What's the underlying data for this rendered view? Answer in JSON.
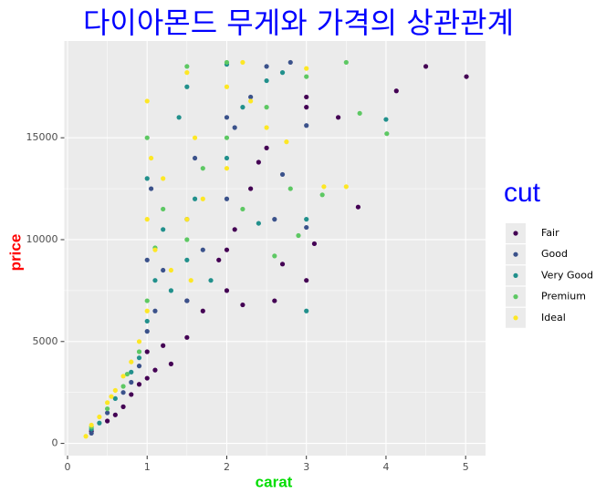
{
  "chart_data": {
    "type": "scatter",
    "title": "다이아몬드 무게와 가격의 상관관계",
    "x_label": "carat",
    "y_label": "price",
    "legend_title": "cut",
    "legend_position": "right",
    "grid": true,
    "xlim": [
      -0.04,
      5.25
    ],
    "ylim": [
      -599,
      19748
    ],
    "xticks": [
      0,
      1,
      2,
      3,
      4,
      5
    ],
    "yticks": [
      0,
      5000,
      10000,
      15000
    ],
    "series": [
      {
        "name": "Fair",
        "color": "#440154",
        "x": [
          0.3,
          0.5,
          0.7,
          0.8,
          0.9,
          1.0,
          1.0,
          1.1,
          1.2,
          1.5,
          1.5,
          1.7,
          2.0,
          2.0,
          2.1,
          2.3,
          2.5,
          2.6,
          2.7,
          3.0,
          3.0,
          3.0,
          3.4,
          3.65,
          4.13,
          4.5,
          5.01,
          3.1,
          2.2,
          1.3,
          0.6,
          1.9,
          2.4
        ],
        "values": [
          600,
          1100,
          1800,
          2400,
          2900,
          3200,
          4500,
          3600,
          4800,
          5200,
          7000,
          6500,
          7500,
          9500,
          10500,
          12500,
          14500,
          7000,
          8800,
          8000,
          17000,
          16500,
          16000,
          11600,
          17300,
          18500,
          18000,
          9800,
          6800,
          3900,
          1400,
          9000,
          13800
        ]
      },
      {
        "name": "Good",
        "color": "#3B528B",
        "x": [
          0.3,
          0.5,
          0.7,
          0.9,
          1.0,
          1.0,
          1.1,
          1.2,
          1.5,
          1.5,
          1.6,
          1.7,
          2.0,
          2.0,
          2.1,
          2.3,
          2.5,
          2.8,
          3.0,
          3.0,
          2.7,
          0.8,
          1.05,
          2.6
        ],
        "values": [
          500,
          1500,
          2500,
          3800,
          5500,
          9000,
          6500,
          8500,
          7000,
          11000,
          14000,
          9500,
          12000,
          16000,
          15500,
          17000,
          18500,
          18700,
          15600,
          10600,
          13200,
          3000,
          12500,
          11000
        ]
      },
      {
        "name": "Very Good",
        "color": "#21908C",
        "x": [
          0.3,
          0.4,
          0.6,
          0.8,
          1.0,
          1.0,
          1.1,
          1.2,
          1.5,
          1.5,
          1.6,
          1.8,
          2.0,
          2.0,
          2.2,
          2.5,
          2.7,
          3.0,
          4.0,
          3.0,
          0.9,
          1.3,
          2.4,
          1.4
        ],
        "values": [
          700,
          1000,
          2200,
          3500,
          6000,
          13000,
          8000,
          10500,
          9000,
          17500,
          12000,
          8000,
          14000,
          18600,
          16500,
          17800,
          18200,
          6500,
          15900,
          11000,
          4200,
          7500,
          10800,
          16000
        ]
      },
      {
        "name": "Premium",
        "color": "#5DC863",
        "x": [
          0.3,
          0.5,
          0.7,
          0.9,
          1.0,
          1.0,
          1.2,
          1.5,
          1.5,
          1.7,
          2.0,
          2.0,
          2.2,
          2.5,
          2.8,
          3.0,
          3.5,
          3.67,
          4.01,
          3.2,
          2.6,
          0.75,
          1.1,
          2.9
        ],
        "values": [
          800,
          1700,
          2800,
          4500,
          7000,
          15000,
          11500,
          10000,
          18500,
          13500,
          15000,
          18700,
          11500,
          16500,
          12500,
          18000,
          18700,
          16200,
          15200,
          12200,
          9200,
          3400,
          9600,
          10200
        ]
      },
      {
        "name": "Ideal",
        "color": "#FDE725",
        "x": [
          0.23,
          0.3,
          0.4,
          0.5,
          0.6,
          0.7,
          0.8,
          0.9,
          1.0,
          1.0,
          1.0,
          1.1,
          1.2,
          1.3,
          1.5,
          1.5,
          1.6,
          1.7,
          2.0,
          2.0,
          2.2,
          2.5,
          3.0,
          3.22,
          3.5,
          2.75,
          0.55,
          1.05,
          1.55,
          2.3
        ],
        "values": [
          350,
          900,
          1300,
          2000,
          2600,
          3300,
          4000,
          5000,
          6500,
          11000,
          16800,
          9500,
          13000,
          8500,
          11000,
          18200,
          15000,
          12000,
          13500,
          17500,
          18700,
          15500,
          18400,
          12600,
          12600,
          14800,
          2300,
          14000,
          8000,
          16800
        ]
      }
    ]
  }
}
